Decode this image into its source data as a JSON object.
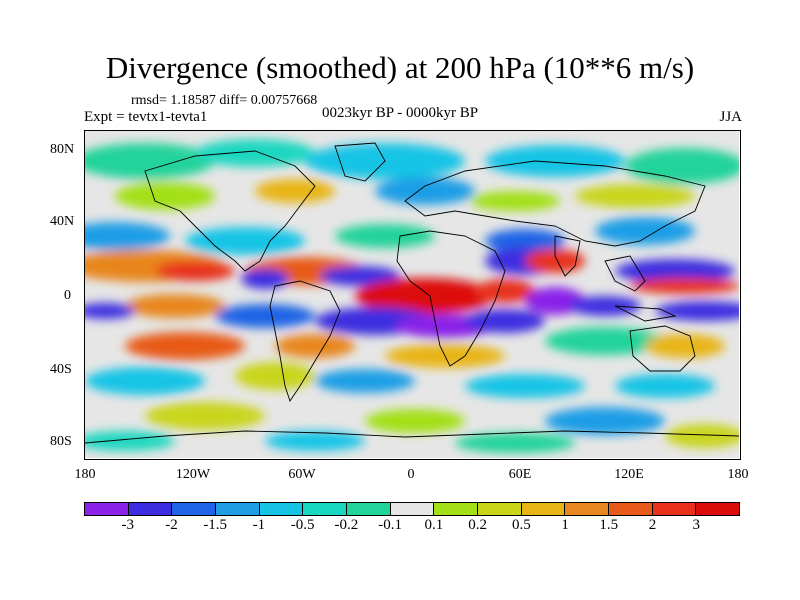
{
  "title": "Divergence (smoothed) at 200 hPa (10**6 m/s)",
  "stats": "rmsd= 1.18587 diff= 0.00757668",
  "expt": "Expt = tevtx1-tevta1",
  "period": "0023kyr BP - 0000kyr BP",
  "season": "JJA",
  "y_axis_labels": [
    "80N",
    "40N",
    "0",
    "40S",
    "80S"
  ],
  "x_axis_labels": [
    "180",
    "120W",
    "60W",
    "0",
    "60E",
    "120E",
    "180"
  ],
  "colorbar": {
    "labels": [
      "-3",
      "-2",
      "-1.5",
      "-1",
      "-0.5",
      "-0.2",
      "-0.1",
      "0.1",
      "0.2",
      "0.5",
      "1",
      "1.5",
      "2",
      "3"
    ],
    "colors": [
      "#8a22e8",
      "#3c2ee0",
      "#1f63e6",
      "#1f9ee6",
      "#18c4e6",
      "#1ad7bf",
      "#22d39a",
      "#e6e6e6",
      "#a3e017",
      "#c9d51a",
      "#e8b516",
      "#e8861f",
      "#e85a19",
      "#e8311c",
      "#dd0c0c"
    ]
  },
  "map_features": {
    "background": "#e6e6e6",
    "itcz_band": "strong divergence dipole along equator"
  }
}
